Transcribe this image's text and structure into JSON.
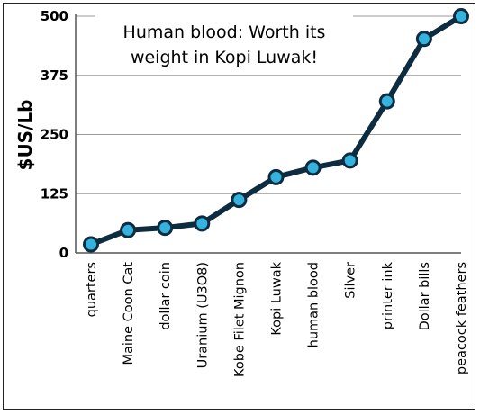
{
  "chart_data": {
    "type": "line",
    "title_lines": [
      "Human blood: Worth its",
      "weight in Kopi Luwak!"
    ],
    "xlabel": "",
    "ylabel": "$US/Lb",
    "ylim": [
      0,
      500
    ],
    "yticks": [
      "0",
      "125",
      "250",
      "375",
      "500"
    ],
    "ytick_values": [
      0,
      125,
      250,
      375,
      500
    ],
    "grid": "horizontal",
    "legend": "none",
    "categories": [
      "quarters",
      "Maine Coon Cat",
      "dollar coin",
      "Uranium (U3O8)",
      "Kobe Filet Mignon",
      "Kopi Luwak",
      "human blood",
      "Silver",
      "printer ink",
      "Dollar bills",
      "peacock feathers"
    ],
    "values": [
      18,
      48,
      53,
      62,
      112,
      160,
      180,
      195,
      320,
      452,
      500
    ],
    "colors": {
      "line": "#0e2c3f",
      "marker_fill": "#33b3de",
      "marker_edge": "#0e2c3f",
      "grid": "#9a9a9a"
    }
  }
}
